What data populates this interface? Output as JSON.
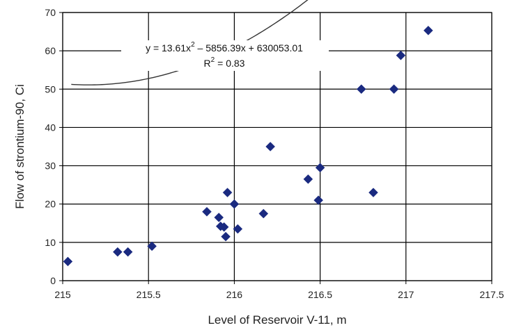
{
  "chart_data": {
    "type": "scatter",
    "xlabel": "Level of Reservoir V-11, m",
    "ylabel": "Flow of strontium-90, Ci",
    "xlim": [
      215,
      217.5
    ],
    "ylim": [
      0,
      70
    ],
    "x_ticks": [
      "215",
      "215.5",
      "216",
      "216.5",
      "217",
      "217.5"
    ],
    "y_ticks": [
      "0",
      "10",
      "20",
      "30",
      "40",
      "50",
      "60",
      "70"
    ],
    "grid": true,
    "marker": "diamond",
    "marker_color": "#1a2a80",
    "trendline": {
      "type": "polynomial",
      "coefficients": [
        13.61,
        -5856.39,
        630053.01
      ],
      "x_range": [
        215.05,
        217.13
      ]
    },
    "annotations": {
      "equation_prefix": "y = 13.61x",
      "equation_exp": "2",
      "equation_suffix": " – 5856.39x + 630053.01",
      "r2_prefix": "R",
      "r2_exp": "2",
      "r2_suffix": " = 0.83"
    },
    "points": [
      {
        "x": 215.03,
        "y": 5
      },
      {
        "x": 215.32,
        "y": 7.5
      },
      {
        "x": 215.38,
        "y": 7.5
      },
      {
        "x": 215.52,
        "y": 9
      },
      {
        "x": 215.84,
        "y": 18
      },
      {
        "x": 215.91,
        "y": 16.5
      },
      {
        "x": 215.92,
        "y": 14.2
      },
      {
        "x": 215.94,
        "y": 14
      },
      {
        "x": 215.95,
        "y": 11.5
      },
      {
        "x": 215.96,
        "y": 23
      },
      {
        "x": 216.0,
        "y": 20
      },
      {
        "x": 216.02,
        "y": 13.5
      },
      {
        "x": 216.17,
        "y": 17.5
      },
      {
        "x": 216.21,
        "y": 35
      },
      {
        "x": 216.43,
        "y": 26.5
      },
      {
        "x": 216.49,
        "y": 21
      },
      {
        "x": 216.5,
        "y": 29.5
      },
      {
        "x": 216.74,
        "y": 50
      },
      {
        "x": 216.81,
        "y": 23
      },
      {
        "x": 216.93,
        "y": 50
      },
      {
        "x": 216.97,
        "y": 58.8
      },
      {
        "x": 217.13,
        "y": 65.3
      }
    ]
  }
}
